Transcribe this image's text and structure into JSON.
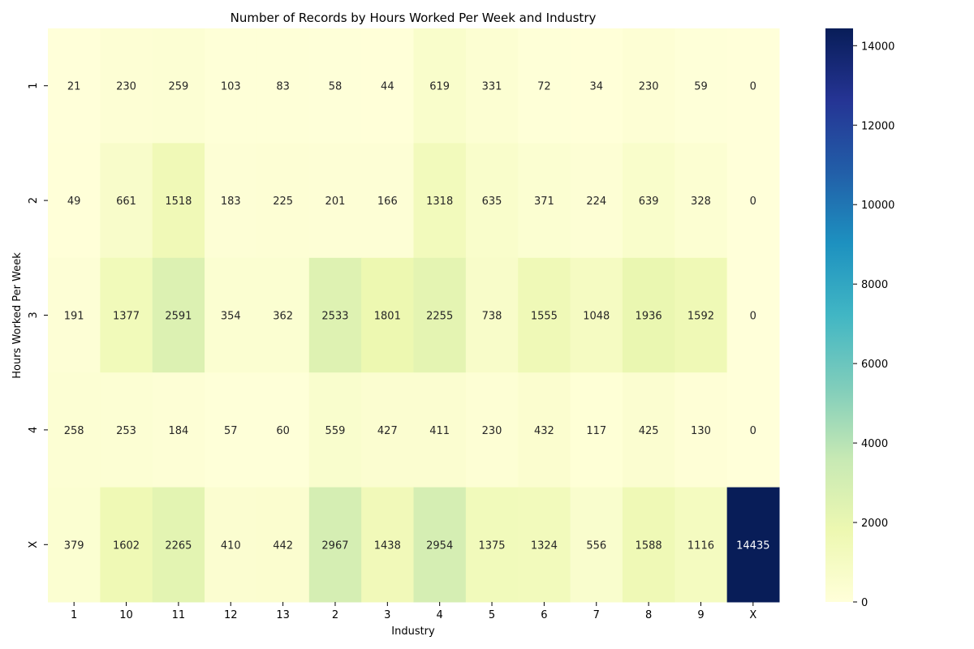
{
  "chart_data": {
    "type": "heatmap",
    "title": "Number of Records by Hours Worked Per Week and Industry",
    "xlabel": "Industry",
    "ylabel": "Hours Worked Per Week",
    "x_categories": [
      "1",
      "10",
      "11",
      "12",
      "13",
      "2",
      "3",
      "4",
      "5",
      "6",
      "7",
      "8",
      "9",
      "X"
    ],
    "y_categories": [
      "1",
      "2",
      "3",
      "4",
      "X"
    ],
    "values": [
      [
        21,
        230,
        259,
        103,
        83,
        58,
        44,
        619,
        331,
        72,
        34,
        230,
        59,
        0
      ],
      [
        49,
        661,
        1518,
        183,
        225,
        201,
        166,
        1318,
        635,
        371,
        224,
        639,
        328,
        0
      ],
      [
        191,
        1377,
        2591,
        354,
        362,
        2533,
        1801,
        2255,
        738,
        1555,
        1048,
        1936,
        1592,
        0
      ],
      [
        258,
        253,
        184,
        57,
        60,
        559,
        427,
        411,
        230,
        432,
        117,
        425,
        130,
        0
      ],
      [
        379,
        1602,
        2265,
        410,
        442,
        2967,
        1438,
        2954,
        1375,
        1324,
        556,
        1588,
        1116,
        14435
      ]
    ],
    "colormap": "YlGnBu",
    "value_range": [
      0,
      14435
    ],
    "colorbar_ticks": [
      0,
      2000,
      4000,
      6000,
      8000,
      10000,
      12000,
      14000
    ],
    "colorbar_tick_labels": [
      "0",
      "2000",
      "4000",
      "6000",
      "8000",
      "10000",
      "12000",
      "14000"
    ],
    "annotations": true,
    "grid": false,
    "colorbar_position": "right"
  }
}
